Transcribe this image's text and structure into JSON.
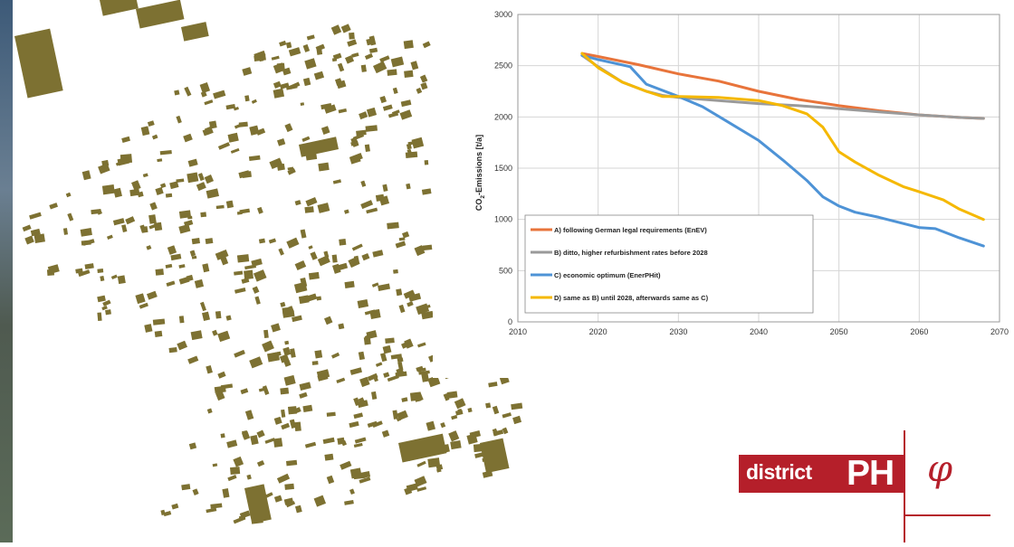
{
  "chart_data": {
    "type": "line",
    "title": "",
    "xlabel": "",
    "ylabel_main": "CO",
    "ylabel_sub": "2",
    "ylabel_rest": "-Emissions [t/a]",
    "xlim": [
      2010,
      2070
    ],
    "ylim": [
      0,
      3000
    ],
    "xticks": [
      "2010",
      "2020",
      "2030",
      "2040",
      "2050",
      "2060",
      "2070"
    ],
    "yticks": [
      "0",
      "500",
      "1000",
      "1500",
      "2000",
      "2500",
      "3000"
    ],
    "grid": true,
    "legend_position": "bottom-left",
    "series": [
      {
        "name": "A) following German legal requirements (EnEV)",
        "color": "#e8743b",
        "x": [
          2018,
          2020,
          2025,
          2030,
          2035,
          2040,
          2045,
          2050,
          2055,
          2060,
          2065,
          2068
        ],
        "y": [
          2620,
          2590,
          2510,
          2420,
          2350,
          2250,
          2170,
          2110,
          2060,
          2020,
          1995,
          1985
        ]
      },
      {
        "name": "B) ditto, higher refurbishment rates before 2028",
        "color": "#9a9a9a",
        "x": [
          2018,
          2020,
          2023,
          2026,
          2028,
          2030,
          2035,
          2040,
          2045,
          2050,
          2055,
          2060,
          2065,
          2068
        ],
        "y": [
          2600,
          2490,
          2340,
          2250,
          2210,
          2190,
          2160,
          2130,
          2110,
          2080,
          2050,
          2020,
          1995,
          1985
        ]
      },
      {
        "name": "C) economic optimum (EnerPHit)",
        "color": "#4e93d6",
        "x": [
          2018,
          2020,
          2024,
          2026,
          2030,
          2033,
          2036,
          2040,
          2043,
          2046,
          2048,
          2050,
          2052,
          2055,
          2058,
          2060,
          2062,
          2065,
          2068
        ],
        "y": [
          2600,
          2560,
          2490,
          2320,
          2200,
          2100,
          1960,
          1770,
          1580,
          1380,
          1220,
          1130,
          1070,
          1020,
          960,
          920,
          910,
          820,
          740
        ]
      },
      {
        "name": "D) same as B) until 2028, afterwards same as C)",
        "color": "#f5b800",
        "x": [
          2018,
          2020,
          2023,
          2026,
          2028,
          2030,
          2035,
          2040,
          2043,
          2046,
          2048,
          2050,
          2052,
          2055,
          2058,
          2060,
          2063,
          2065,
          2068
        ],
        "y": [
          2620,
          2480,
          2340,
          2250,
          2200,
          2200,
          2190,
          2160,
          2110,
          2030,
          1900,
          1660,
          1560,
          1430,
          1320,
          1270,
          1190,
          1100,
          1000
        ]
      }
    ]
  },
  "logo": {
    "word": "district",
    "mark": "PH",
    "symbol": "φ",
    "color": "#b51f2a"
  },
  "map": {
    "building_color": "#7d7132"
  }
}
